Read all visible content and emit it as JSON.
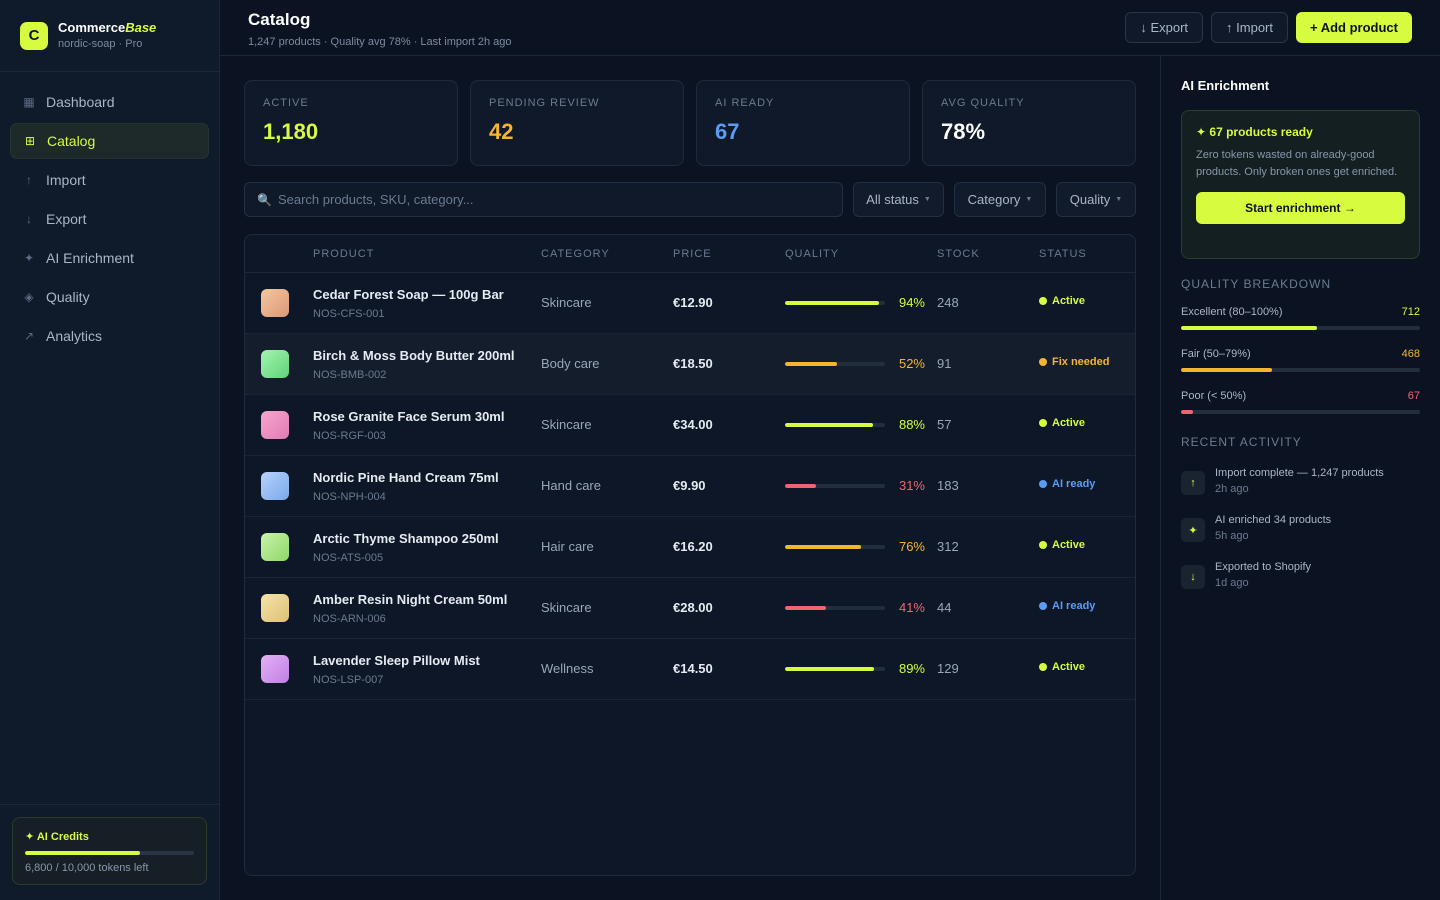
{
  "brand": {
    "logo_letter": "C",
    "name_a": "Commerce",
    "name_b": "Base",
    "workspace": "nordic-soap · Pro"
  },
  "nav": {
    "items": [
      {
        "label": "Dashboard",
        "icon": "▦",
        "icon_name": "dashboard-icon",
        "active": false
      },
      {
        "label": "Catalog",
        "icon": "⊞",
        "icon_name": "catalog-icon",
        "active": true
      },
      {
        "label": "Import",
        "icon": "↑",
        "icon_name": "import-icon",
        "active": false
      },
      {
        "label": "Export",
        "icon": "↓",
        "icon_name": "export-icon",
        "active": false
      },
      {
        "label": "AI Enrichment",
        "icon": "✦",
        "icon_name": "sparkle-icon",
        "active": false
      },
      {
        "label": "Quality",
        "icon": "◈",
        "icon_name": "quality-icon",
        "active": false
      },
      {
        "label": "Analytics",
        "icon": "↗",
        "icon_name": "analytics-icon",
        "active": false
      }
    ]
  },
  "credits": {
    "title": "✦ AI Credits",
    "used_fraction": 0.68,
    "text": "6,800 / 10,000 tokens left"
  },
  "header": {
    "title": "Catalog",
    "subtitle": "1,247 products · Quality avg 78% · Last import 2h ago",
    "export_label": "↓ Export",
    "import_label": "↑ Import",
    "add_label": "+ Add product"
  },
  "stats": [
    {
      "label": "ACTIVE",
      "value": "1,180",
      "color": "#d7fb3f"
    },
    {
      "label": "PENDING REVIEW",
      "value": "42",
      "color": "#f5b52e"
    },
    {
      "label": "AI READY",
      "value": "67",
      "color": "#5b9cf5"
    },
    {
      "label": "AVG QUALITY",
      "value": "78%",
      "color": "#ffffff"
    }
  ],
  "search": {
    "icon": "🔍",
    "placeholder": "Search products, SKU, category..."
  },
  "filters": {
    "status": "All status",
    "category": "Category",
    "quality": "Quality"
  },
  "table": {
    "columns": {
      "product": "PRODUCT",
      "category": "CATEGORY",
      "price": "PRICE",
      "quality": "QUALITY",
      "stock": "STOCK",
      "status": "STATUS"
    },
    "rows": [
      {
        "name": "Cedar Forest Soap — 100g Bar",
        "sku": "NOS-CFS-001",
        "category": "Skincare",
        "price": "€12.90",
        "quality": 94,
        "quality_label": "94%",
        "stock": "248",
        "status": "Active",
        "status_color": "#d7fb3f",
        "thumb": [
          "#f6c79c",
          "#d9987a"
        ]
      },
      {
        "name": "Birch & Moss Body Butter 200ml",
        "sku": "NOS-BMB-002",
        "category": "Body care",
        "price": "€18.50",
        "quality": 52,
        "quality_label": "52%",
        "stock": "91",
        "status": "Fix needed",
        "status_color": "#f5b52e",
        "thumb": [
          "#a5f3b0",
          "#5fd37a"
        ]
      },
      {
        "name": "Rose Granite Face Serum 30ml",
        "sku": "NOS-RGF-003",
        "category": "Skincare",
        "price": "€34.00",
        "quality": 88,
        "quality_label": "88%",
        "stock": "57",
        "status": "Active",
        "status_color": "#d7fb3f",
        "thumb": [
          "#f7a6cf",
          "#e07bb3"
        ]
      },
      {
        "name": "Nordic Pine Hand Cream 75ml",
        "sku": "NOS-NPH-004",
        "category": "Hand care",
        "price": "€9.90",
        "quality": 31,
        "quality_label": "31%",
        "stock": "183",
        "status": "AI ready",
        "status_color": "#5b9cf5",
        "thumb": [
          "#b7d3fb",
          "#7aa8ec"
        ]
      },
      {
        "name": "Arctic Thyme Shampoo 250ml",
        "sku": "NOS-ATS-005",
        "category": "Hair care",
        "price": "€16.20",
        "quality": 76,
        "quality_label": "76%",
        "stock": "312",
        "status": "Active",
        "status_color": "#d7fb3f",
        "thumb": [
          "#c8f5a8",
          "#8fd66a"
        ]
      },
      {
        "name": "Amber Resin Night Cream 50ml",
        "sku": "NOS-ARN-006",
        "category": "Skincare",
        "price": "€28.00",
        "quality": 41,
        "quality_label": "41%",
        "stock": "44",
        "status": "AI ready",
        "status_color": "#5b9cf5",
        "thumb": [
          "#f7e3a6",
          "#dcc077"
        ]
      },
      {
        "name": "Lavender Sleep Pillow Mist",
        "sku": "NOS-LSP-007",
        "category": "Wellness",
        "price": "€14.50",
        "quality": 89,
        "quality_label": "89%",
        "stock": "129",
        "status": "Active",
        "status_color": "#d7fb3f",
        "thumb": [
          "#e3b2f7",
          "#c07fe3"
        ]
      }
    ]
  },
  "quality_colors": {
    "high": "#d7fb3f",
    "mid": "#f5b52e",
    "low": "#f06470"
  },
  "ai_panel": {
    "title": "AI Enrichment",
    "card_title": "✦ 67 products ready",
    "card_text": "Zero tokens wasted on already-good products. Only broken ones get enriched.",
    "card_button": "Start enrichment →",
    "breakdown_title": "QUALITY BREAKDOWN",
    "breakdown": [
      {
        "label": "Excellent (80–100%)",
        "count": "712",
        "fraction": 0.57,
        "color": "#d7fb3f"
      },
      {
        "label": "Fair (50–79%)",
        "count": "468",
        "fraction": 0.38,
        "color": "#f5b52e"
      },
      {
        "label": "Poor (< 50%)",
        "count": "67",
        "fraction": 0.05,
        "color": "#f06470"
      }
    ],
    "activity_title": "RECENT ACTIVITY",
    "activity": [
      {
        "icon": "↑",
        "icon_name": "upload-icon",
        "text": "Import complete — 1,247 products",
        "time": "2h ago"
      },
      {
        "icon": "✦",
        "icon_name": "sparkle-icon",
        "text": "AI enriched 34 products",
        "time": "5h ago"
      },
      {
        "icon": "↓",
        "icon_name": "download-icon",
        "text": "Exported to Shopify",
        "time": "1d ago"
      }
    ]
  }
}
